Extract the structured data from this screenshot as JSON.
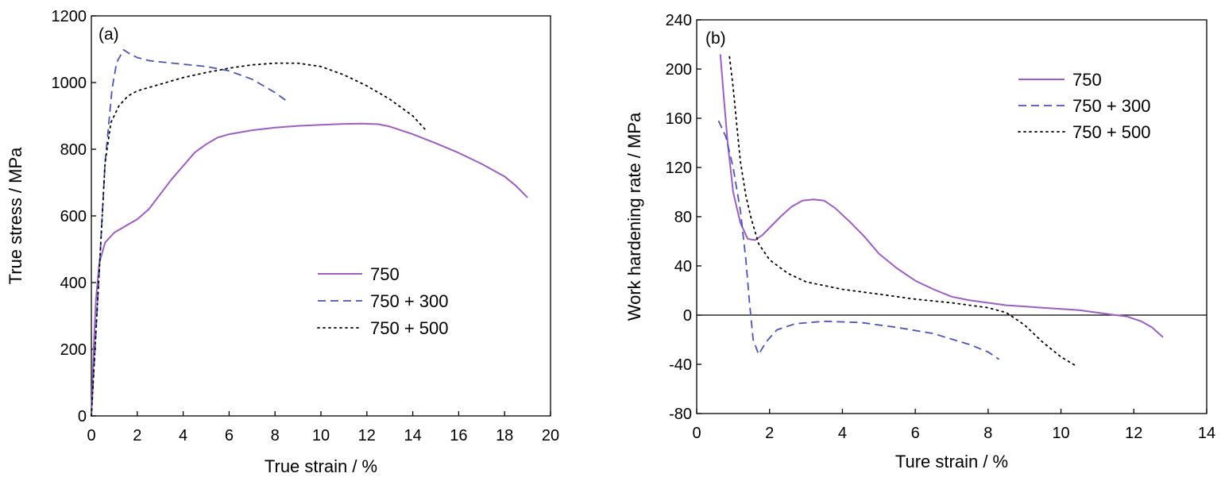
{
  "colors": {
    "750": "#9b5fbf",
    "750 + 300": "#4a56b0",
    "750 + 500": "#000000",
    "axis": "#000000"
  },
  "chart_data": [
    {
      "type": "line",
      "panel_label": "(a)",
      "title": "",
      "xlabel": "True strain / %",
      "ylabel": "True stress / MPa",
      "xlim": [
        0,
        20
      ],
      "ylim": [
        0,
        1200
      ],
      "x_ticks": [
        0,
        2,
        4,
        6,
        8,
        10,
        12,
        14,
        16,
        18,
        20
      ],
      "y_ticks": [
        0,
        200,
        400,
        600,
        800,
        1000,
        1200
      ],
      "grid": false,
      "legend_position": "center-right",
      "series": [
        {
          "name": "750",
          "style": "solid",
          "color_key": "750",
          "points": [
            [
              0,
              0
            ],
            [
              0.1,
              200
            ],
            [
              0.2,
              350
            ],
            [
              0.35,
              460
            ],
            [
              0.6,
              520
            ],
            [
              1.0,
              550
            ],
            [
              1.5,
              570
            ],
            [
              2.0,
              590
            ],
            [
              2.5,
              620
            ],
            [
              3.0,
              665
            ],
            [
              3.5,
              710
            ],
            [
              4.0,
              750
            ],
            [
              4.5,
              790
            ],
            [
              5.0,
              815
            ],
            [
              5.5,
              835
            ],
            [
              6.0,
              845
            ],
            [
              7.0,
              857
            ],
            [
              8.0,
              865
            ],
            [
              9.0,
              870
            ],
            [
              10.0,
              873
            ],
            [
              11.0,
              876
            ],
            [
              11.8,
              877
            ],
            [
              12.5,
              875
            ],
            [
              13.0,
              868
            ],
            [
              14.0,
              845
            ],
            [
              15.0,
              818
            ],
            [
              16.0,
              789
            ],
            [
              17.0,
              756
            ],
            [
              18.0,
              718
            ],
            [
              18.5,
              690
            ],
            [
              19.0,
              655
            ]
          ]
        },
        {
          "name": "750 + 300",
          "style": "dashed",
          "color_key": "750 + 300",
          "points": [
            [
              0,
              0
            ],
            [
              0.3,
              380
            ],
            [
              0.6,
              760
            ],
            [
              0.9,
              980
            ],
            [
              1.1,
              1060
            ],
            [
              1.4,
              1098
            ],
            [
              1.7,
              1085
            ],
            [
              2.0,
              1075
            ],
            [
              2.5,
              1066
            ],
            [
              3.0,
              1062
            ],
            [
              4.0,
              1055
            ],
            [
              5.0,
              1048
            ],
            [
              6.0,
              1035
            ],
            [
              7.0,
              1010
            ],
            [
              8.0,
              970
            ],
            [
              8.6,
              940
            ]
          ]
        },
        {
          "name": "750 + 500",
          "style": "dotted",
          "color_key": "750 + 500",
          "points": [
            [
              0,
              0
            ],
            [
              0.3,
              380
            ],
            [
              0.6,
              760
            ],
            [
              0.85,
              880
            ],
            [
              1.2,
              930
            ],
            [
              1.6,
              960
            ],
            [
              2.0,
              975
            ],
            [
              3.0,
              995
            ],
            [
              4.0,
              1015
            ],
            [
              5.0,
              1030
            ],
            [
              6.0,
              1043
            ],
            [
              7.0,
              1053
            ],
            [
              8.0,
              1058
            ],
            [
              9.0,
              1058
            ],
            [
              10.0,
              1048
            ],
            [
              11.0,
              1023
            ],
            [
              12.0,
              990
            ],
            [
              13.0,
              950
            ],
            [
              14.0,
              900
            ],
            [
              14.6,
              855
            ]
          ]
        }
      ]
    },
    {
      "type": "line",
      "panel_label": "(b)",
      "title": "",
      "xlabel": "Ture strain / %",
      "ylabel": "Work hardening rate / MPa",
      "xlim": [
        0,
        14
      ],
      "ylim": [
        -80,
        240
      ],
      "x_ticks": [
        0,
        2,
        4,
        6,
        8,
        10,
        12,
        14
      ],
      "y_ticks": [
        -80,
        -40,
        0,
        40,
        80,
        120,
        160,
        200,
        240
      ],
      "grid": false,
      "zero_line": true,
      "legend_position": "top-right",
      "series": [
        {
          "name": "750",
          "style": "solid",
          "color_key": "750",
          "points": [
            [
              0.65,
              212
            ],
            [
              0.75,
              175
            ],
            [
              0.85,
              140
            ],
            [
              1.0,
              100
            ],
            [
              1.2,
              75
            ],
            [
              1.4,
              62
            ],
            [
              1.6,
              61
            ],
            [
              1.8,
              65
            ],
            [
              2.0,
              71
            ],
            [
              2.3,
              80
            ],
            [
              2.6,
              88
            ],
            [
              2.9,
              93
            ],
            [
              3.2,
              94
            ],
            [
              3.5,
              93
            ],
            [
              3.8,
              87
            ],
            [
              4.2,
              76
            ],
            [
              4.6,
              64
            ],
            [
              5.0,
              50
            ],
            [
              5.5,
              38
            ],
            [
              6.0,
              28
            ],
            [
              6.5,
              21
            ],
            [
              7.0,
              15
            ],
            [
              7.5,
              12
            ],
            [
              8.0,
              10
            ],
            [
              8.5,
              8
            ],
            [
              9.0,
              7
            ],
            [
              9.5,
              6
            ],
            [
              10.0,
              5
            ],
            [
              10.5,
              4
            ],
            [
              11.0,
              2
            ],
            [
              11.5,
              0
            ],
            [
              11.8,
              -1
            ],
            [
              12.2,
              -5
            ],
            [
              12.5,
              -10
            ],
            [
              12.8,
              -18
            ]
          ]
        },
        {
          "name": "750 + 300",
          "style": "dashed",
          "color_key": "750 + 300",
          "points": [
            [
              0.6,
              158
            ],
            [
              0.8,
              145
            ],
            [
              1.0,
              120
            ],
            [
              1.2,
              85
            ],
            [
              1.35,
              45
            ],
            [
              1.45,
              10
            ],
            [
              1.55,
              -20
            ],
            [
              1.7,
              -32
            ],
            [
              1.9,
              -22
            ],
            [
              2.2,
              -12
            ],
            [
              2.7,
              -7
            ],
            [
              3.5,
              -5
            ],
            [
              4.5,
              -6
            ],
            [
              5.5,
              -10
            ],
            [
              6.5,
              -15
            ],
            [
              7.5,
              -24
            ],
            [
              8.0,
              -30
            ],
            [
              8.3,
              -36
            ]
          ]
        },
        {
          "name": "750 + 500",
          "style": "dotted",
          "color_key": "750 + 500",
          "points": [
            [
              0.9,
              210
            ],
            [
              1.0,
              185
            ],
            [
              1.1,
              155
            ],
            [
              1.2,
              125
            ],
            [
              1.35,
              97
            ],
            [
              1.5,
              78
            ],
            [
              1.7,
              58
            ],
            [
              2.0,
              45
            ],
            [
              2.5,
              34
            ],
            [
              3.0,
              27
            ],
            [
              3.5,
              24
            ],
            [
              4.0,
              21
            ],
            [
              5.0,
              17
            ],
            [
              6.0,
              13
            ],
            [
              7.0,
              10
            ],
            [
              8.0,
              6
            ],
            [
              8.5,
              2
            ],
            [
              9.0,
              -8
            ],
            [
              9.5,
              -22
            ],
            [
              10.0,
              -34
            ],
            [
              10.4,
              -41
            ]
          ]
        }
      ]
    }
  ]
}
